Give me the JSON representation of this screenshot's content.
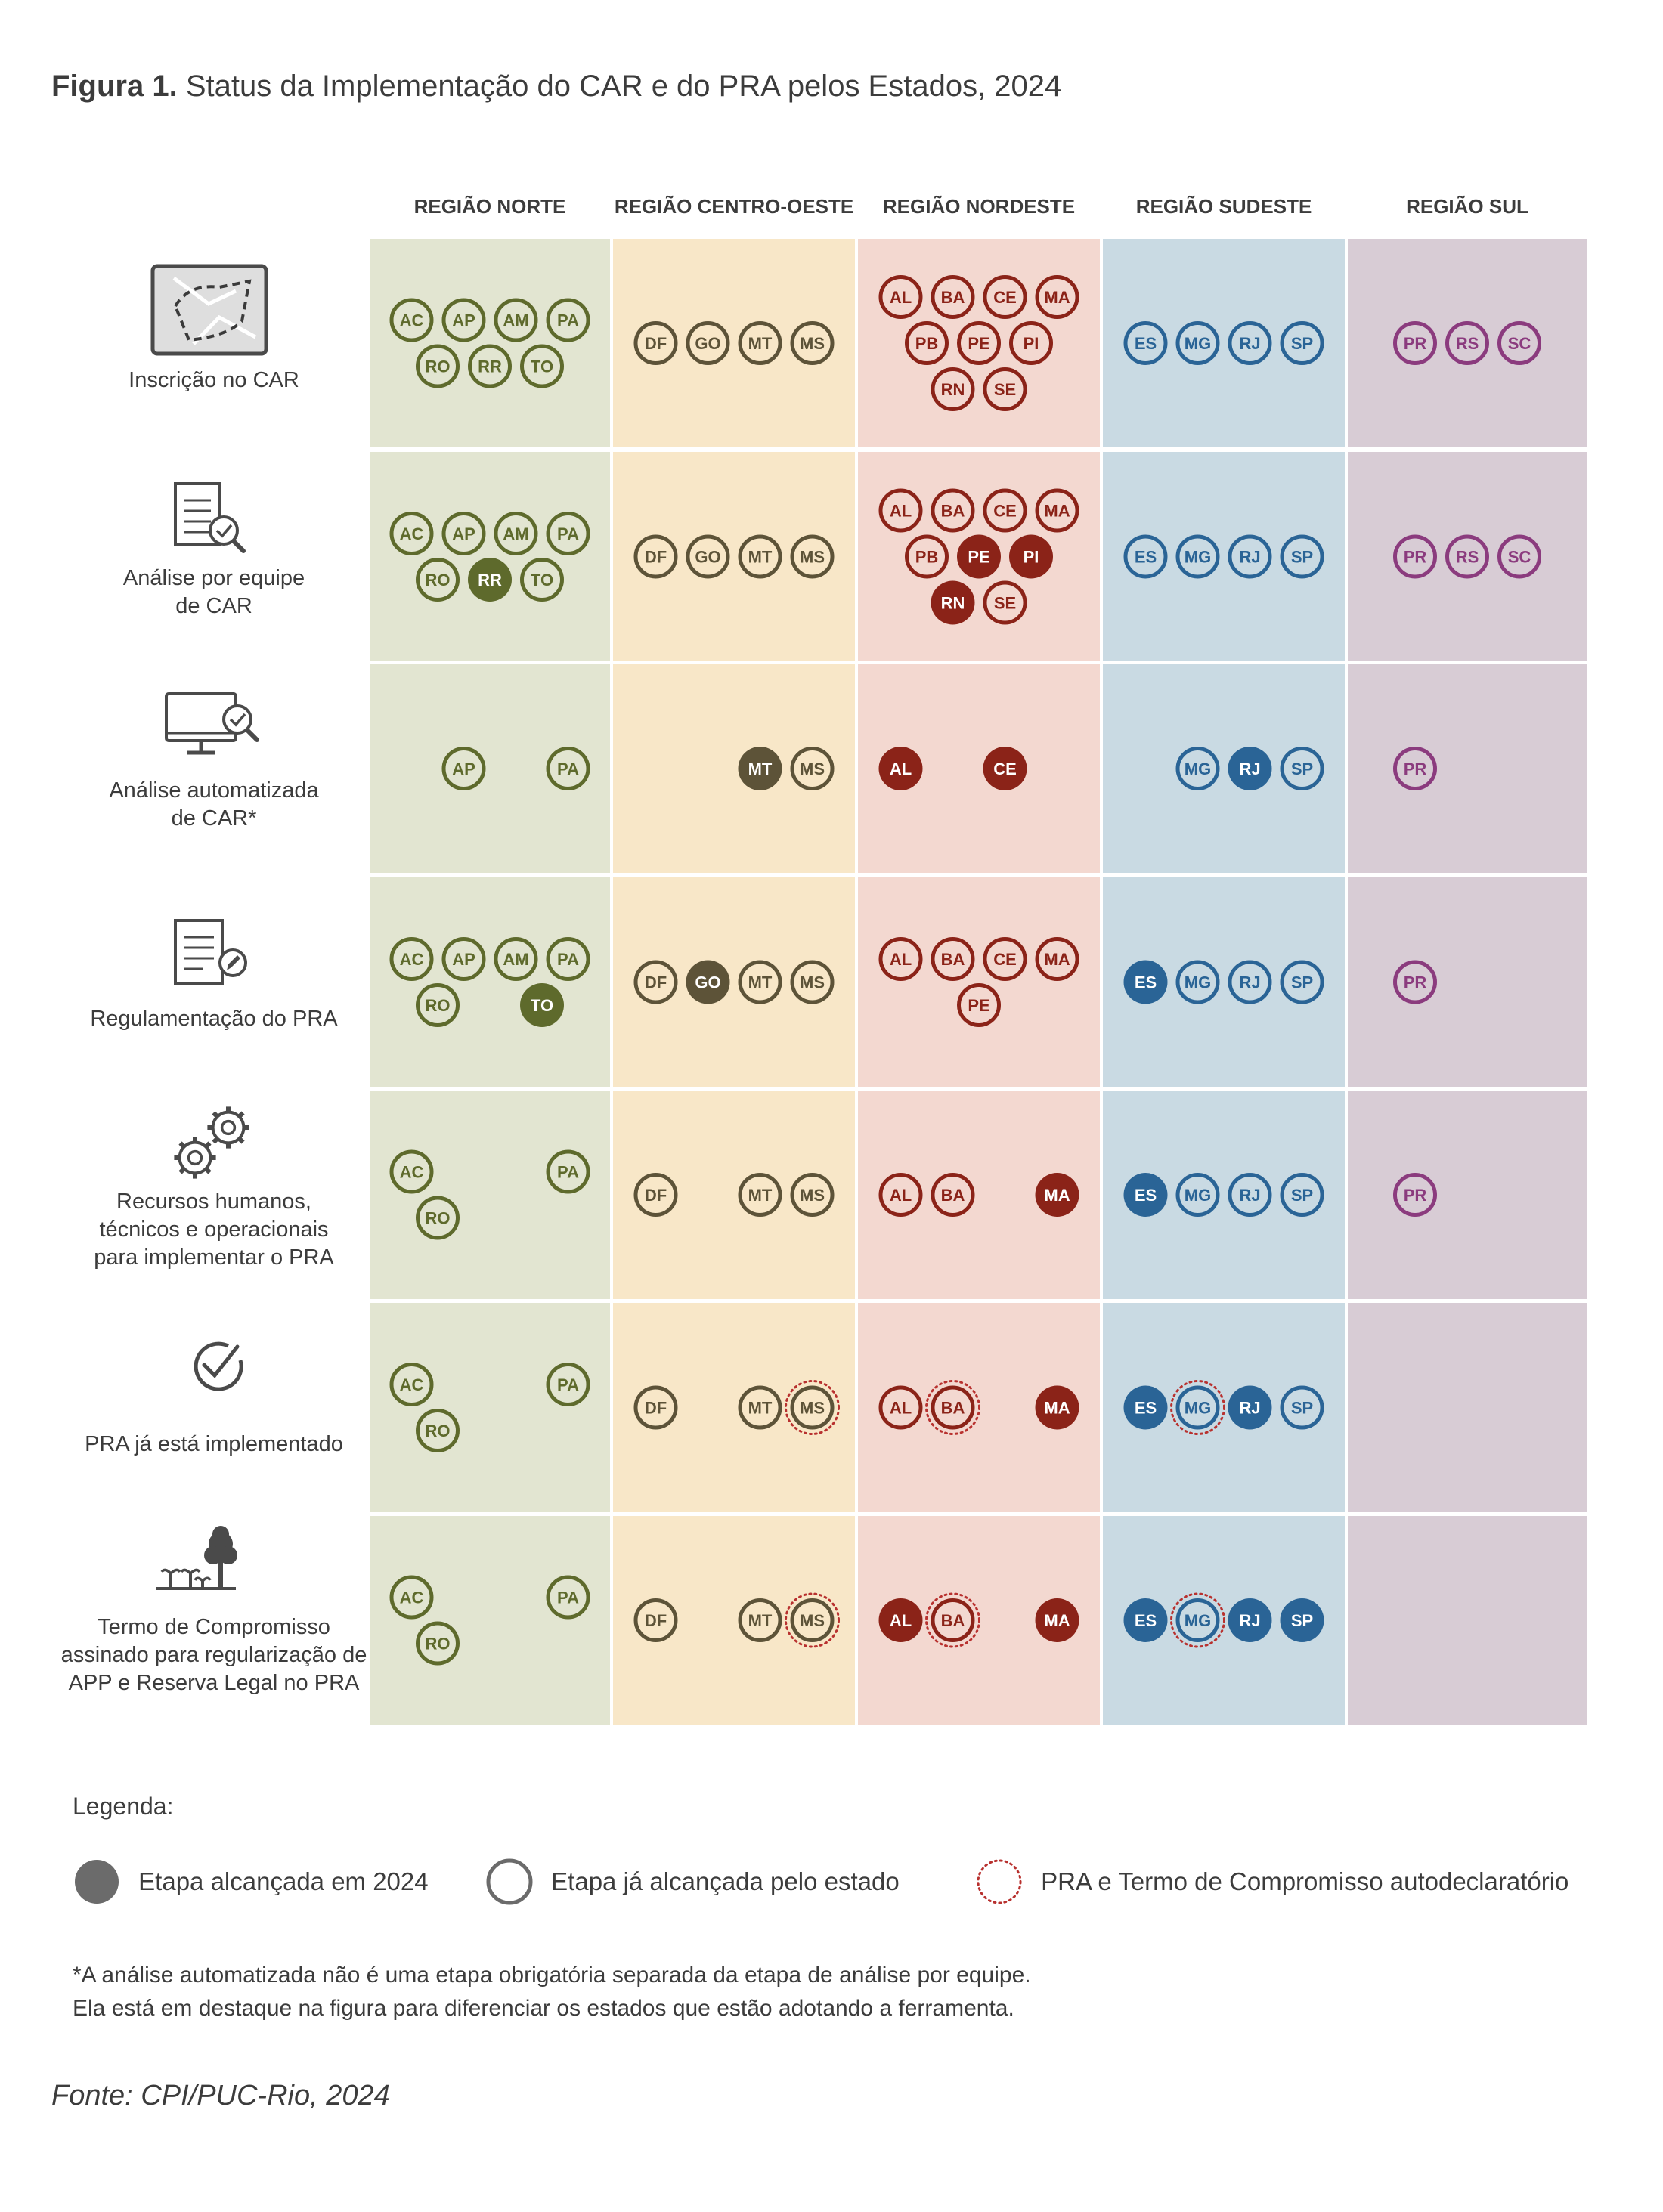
{
  "title": {
    "prefix": "Figura 1.",
    "text": " Status da Implementação do CAR e do PRA pelos Estados, 2024"
  },
  "colors": {
    "norte": {
      "bg": "#e2e5d1",
      "fg": "#5e6a2c"
    },
    "centro_oeste": {
      "bg": "#f8e7c8",
      "fg": "#5d5338"
    },
    "nordeste": {
      "bg": "#f3d8d0",
      "fg": "#8b2318"
    },
    "sudeste": {
      "bg": "#c9dae3",
      "fg": "#2a6496"
    },
    "sul": {
      "bg": "#d8ccd5",
      "fg": "#8b3b7e"
    },
    "autodeclaratorio": "#b8312f"
  },
  "regions": [
    {
      "key": "norte",
      "label": "REGIÃO NORTE"
    },
    {
      "key": "centro_oeste",
      "label": "REGIÃO CENTRO-OESTE"
    },
    {
      "key": "nordeste",
      "label": "REGIÃO NORDESTE"
    },
    {
      "key": "sudeste",
      "label": "REGIÃO SUDESTE"
    },
    {
      "key": "sul",
      "label": "REGIÃO SUL"
    }
  ],
  "stages": [
    {
      "icon": "map-icon",
      "label": [
        "Inscrição no CAR"
      ],
      "cells": {
        "norte": [
          [
            {
              "s": "AC"
            },
            {
              "s": "AP"
            },
            {
              "s": "AM"
            },
            {
              "s": "PA"
            }
          ],
          [
            {
              "s": "RO"
            },
            {
              "s": "RR"
            },
            {
              "s": "TO"
            }
          ]
        ],
        "centro_oeste": [
          [
            {
              "s": "DF"
            },
            {
              "s": "GO"
            },
            {
              "s": "MT"
            },
            {
              "s": "MS"
            }
          ]
        ],
        "nordeste": [
          [
            {
              "s": "AL"
            },
            {
              "s": "BA"
            },
            {
              "s": "CE"
            },
            {
              "s": "MA"
            }
          ],
          [
            {
              "s": "PB"
            },
            {
              "s": "PE"
            },
            {
              "s": "PI"
            }
          ],
          [
            {
              "s": "RN"
            },
            {
              "s": "SE"
            }
          ]
        ],
        "sudeste": [
          [
            {
              "s": "ES"
            },
            {
              "s": "MG"
            },
            {
              "s": "RJ"
            },
            {
              "s": "SP"
            }
          ]
        ],
        "sul": [
          [
            {
              "s": "PR"
            },
            {
              "s": "RS"
            },
            {
              "s": "SC"
            }
          ]
        ]
      }
    },
    {
      "icon": "document-search-icon",
      "label": [
        "Análise por equipe",
        "de CAR"
      ],
      "cells": {
        "norte": [
          [
            {
              "s": "AC"
            },
            {
              "s": "AP"
            },
            {
              "s": "AM"
            },
            {
              "s": "PA"
            }
          ],
          [
            {
              "s": "RO"
            },
            {
              "s": "RR",
              "filled": true
            },
            {
              "s": "TO"
            }
          ]
        ],
        "centro_oeste": [
          [
            {
              "s": "DF"
            },
            {
              "s": "GO"
            },
            {
              "s": "MT"
            },
            {
              "s": "MS"
            }
          ]
        ],
        "nordeste": [
          [
            {
              "s": "AL"
            },
            {
              "s": "BA"
            },
            {
              "s": "CE"
            },
            {
              "s": "MA"
            }
          ],
          [
            {
              "s": "PB"
            },
            {
              "s": "PE",
              "filled": true
            },
            {
              "s": "PI",
              "filled": true
            }
          ],
          [
            {
              "s": "RN",
              "filled": true
            },
            {
              "s": "SE"
            }
          ]
        ],
        "sudeste": [
          [
            {
              "s": "ES"
            },
            {
              "s": "MG"
            },
            {
              "s": "RJ"
            },
            {
              "s": "SP"
            }
          ]
        ],
        "sul": [
          [
            {
              "s": "PR"
            },
            {
              "s": "RS"
            },
            {
              "s": "SC"
            }
          ]
        ]
      }
    },
    {
      "icon": "monitor-check-icon",
      "label": [
        "Análise automatizada",
        "de CAR*"
      ],
      "cells": {
        "norte": [
          [
            null,
            {
              "s": "AP"
            },
            null,
            {
              "s": "PA"
            }
          ]
        ],
        "centro_oeste": [
          [
            null,
            null,
            {
              "s": "MT",
              "filled": true
            },
            {
              "s": "MS"
            }
          ]
        ],
        "nordeste": [
          [
            {
              "s": "AL",
              "filled": true
            },
            null,
            {
              "s": "CE",
              "filled": true
            },
            null
          ]
        ],
        "sudeste": [
          [
            null,
            {
              "s": "MG"
            },
            {
              "s": "RJ",
              "filled": true
            },
            {
              "s": "SP"
            }
          ]
        ],
        "sul": [
          [
            {
              "s": "PR"
            },
            null,
            null
          ]
        ]
      }
    },
    {
      "icon": "document-edit-icon",
      "label": [
        "Regulamentação do PRA"
      ],
      "cells": {
        "norte": [
          [
            {
              "s": "AC"
            },
            {
              "s": "AP"
            },
            {
              "s": "AM"
            },
            {
              "s": "PA"
            }
          ],
          [
            {
              "s": "RO"
            },
            null,
            {
              "s": "TO",
              "filled": true
            }
          ]
        ],
        "centro_oeste": [
          [
            {
              "s": "DF"
            },
            {
              "s": "GO",
              "filled": true
            },
            {
              "s": "MT"
            },
            {
              "s": "MS"
            }
          ]
        ],
        "nordeste": [
          [
            {
              "s": "AL"
            },
            {
              "s": "BA"
            },
            {
              "s": "CE"
            },
            {
              "s": "MA"
            }
          ],
          [
            null,
            {
              "s": "PE"
            },
            null
          ]
        ],
        "sudeste": [
          [
            {
              "s": "ES",
              "filled": true
            },
            {
              "s": "MG"
            },
            {
              "s": "RJ"
            },
            {
              "s": "SP"
            }
          ]
        ],
        "sul": [
          [
            {
              "s": "PR"
            },
            null,
            null
          ]
        ]
      }
    },
    {
      "icon": "gears-icon",
      "label": [
        "Recursos humanos,",
        "técnicos e operacionais",
        "para implementar o PRA"
      ],
      "cells": {
        "norte": [
          [
            {
              "s": "AC"
            },
            null,
            null,
            {
              "s": "PA"
            }
          ],
          [
            {
              "s": "RO"
            },
            null,
            null
          ]
        ],
        "centro_oeste": [
          [
            {
              "s": "DF"
            },
            null,
            {
              "s": "MT"
            },
            {
              "s": "MS"
            }
          ]
        ],
        "nordeste": [
          [
            {
              "s": "AL"
            },
            {
              "s": "BA"
            },
            null,
            {
              "s": "MA",
              "filled": true
            }
          ]
        ],
        "sudeste": [
          [
            {
              "s": "ES",
              "filled": true
            },
            {
              "s": "MG"
            },
            {
              "s": "RJ"
            },
            {
              "s": "SP"
            }
          ]
        ],
        "sul": [
          [
            {
              "s": "PR"
            },
            null,
            null
          ]
        ]
      }
    },
    {
      "icon": "check-circle-icon",
      "label": [
        "PRA já está implementado"
      ],
      "cells": {
        "norte": [
          [
            {
              "s": "AC"
            },
            null,
            null,
            {
              "s": "PA"
            }
          ],
          [
            {
              "s": "RO"
            },
            null,
            null
          ]
        ],
        "centro_oeste": [
          [
            {
              "s": "DF"
            },
            null,
            {
              "s": "MT"
            },
            {
              "s": "MS",
              "dotted": true
            }
          ]
        ],
        "nordeste": [
          [
            {
              "s": "AL"
            },
            {
              "s": "BA",
              "dotted": true
            },
            null,
            {
              "s": "MA",
              "filled": true
            }
          ]
        ],
        "sudeste": [
          [
            {
              "s": "ES",
              "filled": true
            },
            {
              "s": "MG",
              "dotted": true
            },
            {
              "s": "RJ",
              "filled": true
            },
            {
              "s": "SP"
            }
          ]
        ],
        "sul": []
      }
    },
    {
      "icon": "tree-seedlings-icon",
      "label": [
        "Termo de Compromisso",
        "assinado para regularização de",
        "APP e Reserva Legal no PRA"
      ],
      "cells": {
        "norte": [
          [
            {
              "s": "AC"
            },
            null,
            null,
            {
              "s": "PA"
            }
          ],
          [
            {
              "s": "RO"
            },
            null,
            null
          ]
        ],
        "centro_oeste": [
          [
            {
              "s": "DF"
            },
            null,
            {
              "s": "MT"
            },
            {
              "s": "MS",
              "dotted": true
            }
          ]
        ],
        "nordeste": [
          [
            {
              "s": "AL",
              "filled": true
            },
            {
              "s": "BA",
              "dotted": true
            },
            null,
            {
              "s": "MA",
              "filled": true
            }
          ]
        ],
        "sudeste": [
          [
            {
              "s": "ES",
              "filled": true
            },
            {
              "s": "MG",
              "dotted": true
            },
            {
              "s": "RJ",
              "filled": true
            },
            {
              "s": "SP",
              "filled": true
            }
          ]
        ],
        "sul": []
      }
    }
  ],
  "legend": {
    "title": "Legenda:",
    "filled": "Etapa alcançada em 2024",
    "outline": "Etapa já alcançada pelo estado",
    "dotted": "PRA e Termo de Compromisso autodeclaratório"
  },
  "footnote": {
    "line1": "*A análise automatizada não é uma etapa obrigatória separada da etapa de análise por equipe.",
    "line2": "Ela está em destaque na figura para diferenciar os estados que estão adotando a ferramenta."
  },
  "source": {
    "label": "Fonte:",
    "text": " CPI/PUC-Rio, 2024"
  }
}
